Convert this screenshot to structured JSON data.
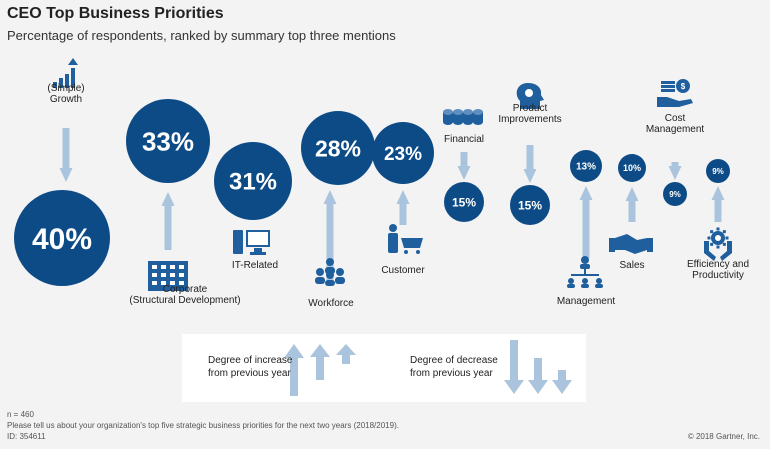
{
  "header": {
    "title": "CEO Top Business Priorities",
    "subtitle": "Percentage of respondents, ranked by summary top three mentions"
  },
  "colors": {
    "circle": "#0d4b86",
    "arrow_up": "#a9c4dc",
    "arrow_down": "#a9c4dc",
    "icon": "#1f5f9e",
    "background": "#f3f3f3"
  },
  "chart_data": {
    "type": "bubble",
    "title": "CEO Top Business Priorities",
    "subtitle": "Percentage of respondents, ranked by summary top three mentions",
    "unit": "%",
    "items": [
      {
        "label": "(Simple)\nGrowth",
        "value": 40,
        "display": "40%",
        "trend": "up",
        "icon": "growth-chart-icon"
      },
      {
        "label": "Corporate\n(Structural Development)",
        "value": 33,
        "display": "33%",
        "trend": "up",
        "icon": "buildings-icon"
      },
      {
        "label": "IT-Related",
        "value": 31,
        "display": "31%",
        "trend": "none",
        "icon": "computer-icon"
      },
      {
        "label": "Workforce",
        "value": 28,
        "display": "28%",
        "trend": "up",
        "icon": "people-group-icon"
      },
      {
        "label": "Customer",
        "value": 23,
        "display": "23%",
        "trend": "up",
        "icon": "shopping-cart-icon"
      },
      {
        "label": "Financial",
        "value": 15,
        "display": "15%",
        "trend": "down",
        "icon": "coins-icon"
      },
      {
        "label": "Product\nImprovements",
        "value": 15,
        "display": "15%",
        "trend": "down",
        "icon": "idea-head-icon"
      },
      {
        "label": "Management",
        "value": 13,
        "display": "13%",
        "trend": "up",
        "icon": "org-chart-icon"
      },
      {
        "label": "Sales",
        "value": 10,
        "display": "10%",
        "trend": "up",
        "icon": "handshake-icon"
      },
      {
        "label": "Cost\nManagement",
        "value": 9,
        "display": "9%",
        "trend": "down",
        "icon": "hand-coins-icon"
      },
      {
        "label": "Efficiency and\nProductivity",
        "value": 9,
        "display": "9%",
        "trend": "up",
        "icon": "gear-hands-icon"
      }
    ]
  },
  "legend": {
    "increase": "Degree of increase\nfrom previous year",
    "decrease": "Degree of decrease\nfrom previous year"
  },
  "footer": {
    "n": "n = 460",
    "question": "Please tell us about your organization's top five strategic business priorities for the next two years (2018/2019).",
    "id": "ID: 354611",
    "copyright": "© 2018 Gartner, Inc."
  }
}
